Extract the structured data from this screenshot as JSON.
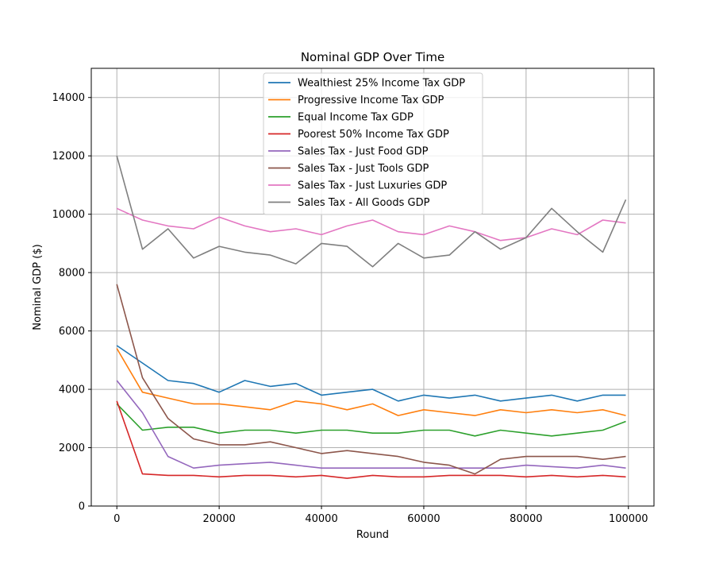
{
  "chart_data": {
    "type": "line",
    "title": "Nominal GDP Over Time",
    "xlabel": "Round",
    "ylabel": "Nominal GDP ($)",
    "xlim": [
      -5000,
      105000
    ],
    "ylim": [
      0,
      15000
    ],
    "xticks": [
      0,
      20000,
      40000,
      60000,
      80000,
      100000
    ],
    "yticks": [
      0,
      2000,
      4000,
      6000,
      8000,
      10000,
      12000,
      14000
    ],
    "grid": true,
    "legend_position": "top-center",
    "x": [
      0,
      5000,
      10000,
      15000,
      20000,
      25000,
      30000,
      35000,
      40000,
      45000,
      50000,
      55000,
      60000,
      65000,
      70000,
      75000,
      80000,
      85000,
      90000,
      95000,
      99500
    ],
    "series": [
      {
        "name": "Wealthiest 25% Income Tax GDP",
        "color": "#1f77b4",
        "values": [
          5500,
          4900,
          4300,
          4200,
          3900,
          4300,
          4100,
          4200,
          3800,
          3900,
          4000,
          3600,
          3800,
          3700,
          3800,
          3600,
          3700,
          3800,
          3600,
          3800,
          3800
        ]
      },
      {
        "name": "Progressive Income Tax GDP",
        "color": "#ff7f0e",
        "values": [
          5400,
          3900,
          3700,
          3500,
          3500,
          3400,
          3300,
          3600,
          3500,
          3300,
          3500,
          3100,
          3300,
          3200,
          3100,
          3300,
          3200,
          3300,
          3200,
          3300,
          3100
        ]
      },
      {
        "name": "Equal Income Tax GDP",
        "color": "#2ca02c",
        "values": [
          3500,
          2600,
          2700,
          2700,
          2500,
          2600,
          2600,
          2500,
          2600,
          2600,
          2500,
          2500,
          2600,
          2600,
          2400,
          2600,
          2500,
          2400,
          2500,
          2600,
          2900
        ]
      },
      {
        "name": "Poorest 50% Income Tax GDP",
        "color": "#d62728",
        "values": [
          3600,
          1100,
          1050,
          1050,
          1000,
          1050,
          1050,
          1000,
          1050,
          950,
          1050,
          1000,
          1000,
          1050,
          1050,
          1050,
          1000,
          1050,
          1000,
          1050,
          1000
        ]
      },
      {
        "name": "Sales Tax - Just Food GDP",
        "color": "#9467bd",
        "values": [
          4300,
          3200,
          1700,
          1300,
          1400,
          1450,
          1500,
          1400,
          1300,
          1300,
          1300,
          1300,
          1300,
          1300,
          1300,
          1300,
          1400,
          1350,
          1300,
          1400,
          1300
        ]
      },
      {
        "name": "Sales Tax - Just Tools GDP",
        "color": "#8c564b",
        "values": [
          7600,
          4400,
          3000,
          2300,
          2100,
          2100,
          2200,
          2000,
          1800,
          1900,
          1800,
          1700,
          1500,
          1400,
          1100,
          1600,
          1700,
          1700,
          1700,
          1600,
          1700
        ]
      },
      {
        "name": "Sales Tax - Just Luxuries GDP",
        "color": "#e377c2",
        "values": [
          10200,
          9800,
          9600,
          9500,
          9900,
          9600,
          9400,
          9500,
          9300,
          9600,
          9800,
          9400,
          9300,
          9600,
          9400,
          9100,
          9200,
          9500,
          9300,
          9800,
          9700
        ]
      },
      {
        "name": "Sales Tax - All Goods GDP",
        "color": "#7f7f7f",
        "values": [
          12000,
          8800,
          9500,
          8500,
          8900,
          8700,
          8600,
          8300,
          9000,
          8900,
          8200,
          9000,
          8500,
          8600,
          9400,
          8800,
          9200,
          10200,
          9400,
          8700,
          10500
        ]
      }
    ]
  }
}
